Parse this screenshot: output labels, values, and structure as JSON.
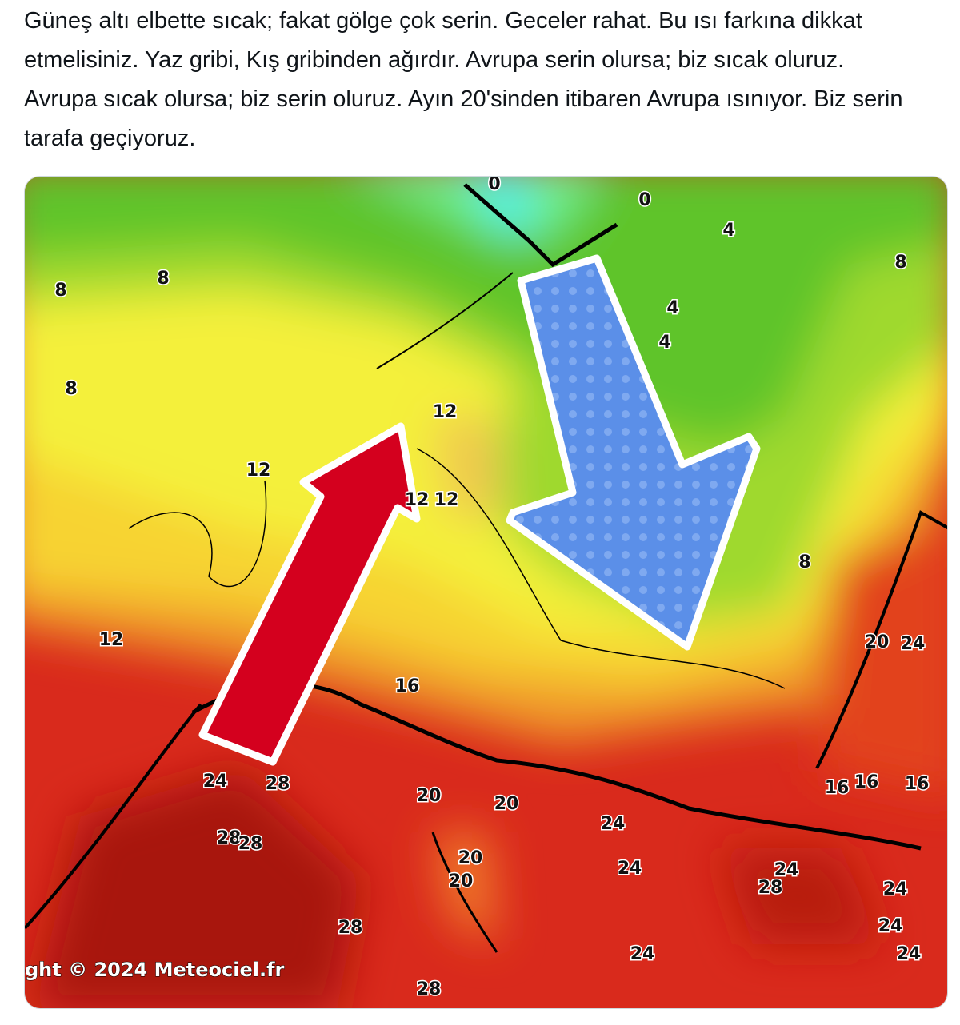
{
  "tweet": {
    "text": "Güneş altı elbette sıcak; fakat gölge çok serin. Geceler rahat. Bu ısı farkına dikkat etmelisiniz. Yaz gribi, Kış gribinden ağırdır. Avrupa serin olursa; biz sıcak oluruz. Avrupa sıcak olursa; biz serin oluruz. Ayın 20'sinden itibaren Avrupa ısınıyor. Biz serin tarafa geçiyoruz."
  },
  "map": {
    "copyright": "ght © 2024 Meteociel.fr",
    "labels": [
      0,
      0,
      4,
      8,
      8,
      8,
      4,
      4,
      8,
      12,
      12,
      12,
      12,
      8,
      12,
      16,
      20,
      24,
      24,
      28,
      20,
      20,
      24,
      16,
      16,
      16,
      28,
      28,
      20,
      20,
      24,
      24,
      28,
      24,
      24,
      28,
      24,
      24,
      28
    ]
  }
}
